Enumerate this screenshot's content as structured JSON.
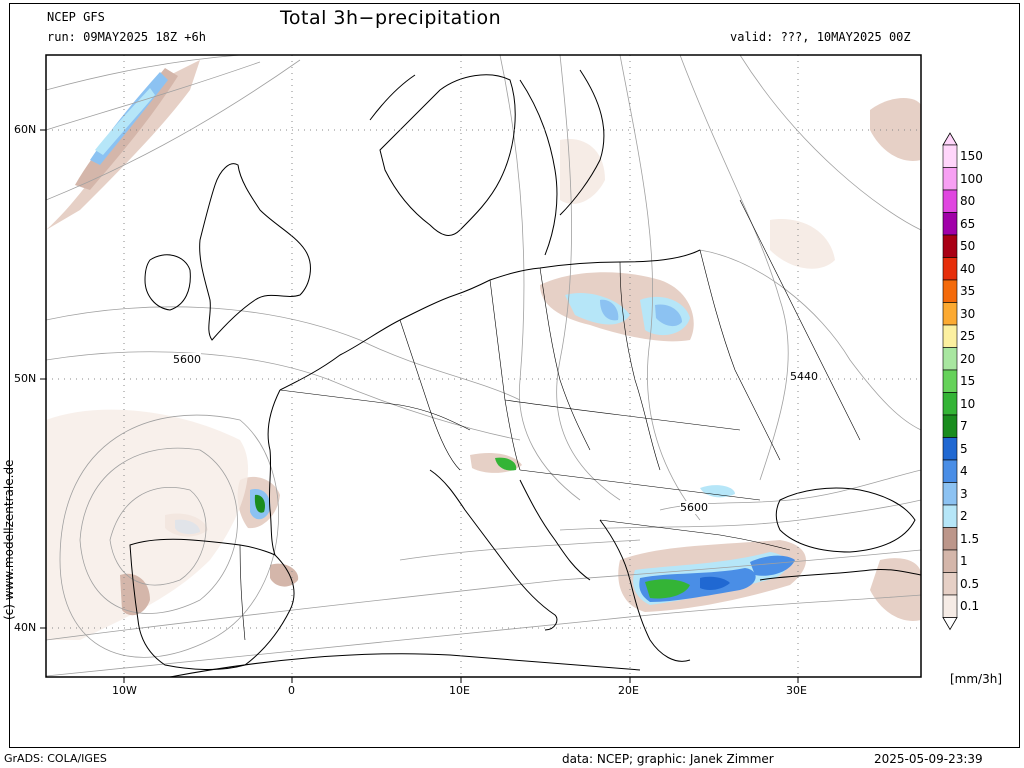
{
  "header": {
    "model": "NCEP GFS",
    "run": "run: 09MAY2025 18Z +6h",
    "title": "Total 3h−precipitation",
    "valid": "valid: ???, 10MAY2025 00Z"
  },
  "footer": {
    "grads": "GrADS: COLA/IGES",
    "data": "data: NCEP; graphic: Janek Zimmer",
    "timestamp": "2025-05-09-23:39"
  },
  "credit": "(c)  www.modellzentrale.de",
  "axes": {
    "lat_labels": [
      "60N",
      "50N",
      "40N"
    ],
    "lon_labels": [
      "10W",
      "0",
      "10E",
      "20E",
      "30E"
    ]
  },
  "contour_labels": [
    "5600",
    "5440",
    "5600"
  ],
  "colorbar": {
    "unit": "[mm/3h]",
    "levels": [
      {
        "label": "150",
        "color": "#ffd6fb"
      },
      {
        "label": "100",
        "color": "#f7a0f3"
      },
      {
        "label": "80",
        "color": "#e046e0"
      },
      {
        "label": "65",
        "color": "#a000a8"
      },
      {
        "label": "50",
        "color": "#a80014"
      },
      {
        "label": "40",
        "color": "#e62e0a"
      },
      {
        "label": "35",
        "color": "#f46a0a"
      },
      {
        "label": "30",
        "color": "#fcaa32"
      },
      {
        "label": "25",
        "color": "#fcf0a0"
      },
      {
        "label": "20",
        "color": "#a8e6a0"
      },
      {
        "label": "15",
        "color": "#66d25a"
      },
      {
        "label": "10",
        "color": "#34b436"
      },
      {
        "label": "7",
        "color": "#1a8c1e"
      },
      {
        "label": "5",
        "color": "#2068d2"
      },
      {
        "label": "4",
        "color": "#4a8ee6"
      },
      {
        "label": "3",
        "color": "#8cc2f2"
      },
      {
        "label": "2",
        "color": "#b6e6f8"
      },
      {
        "label": "1.5",
        "color": "#bc968a"
      },
      {
        "label": "1",
        "color": "#d4b6aa"
      },
      {
        "label": "0.5",
        "color": "#e6d0c6"
      },
      {
        "label": "0.1",
        "color": "#f6ece6"
      }
    ]
  }
}
